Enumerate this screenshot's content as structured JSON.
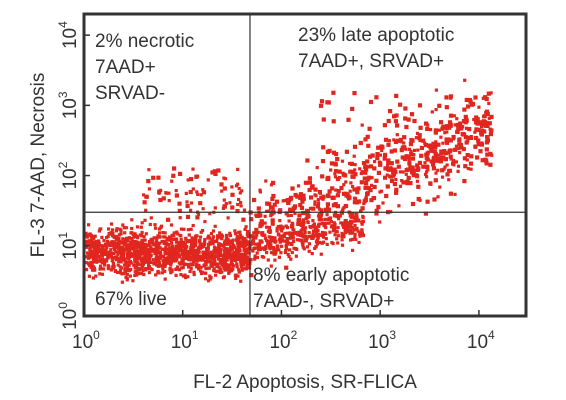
{
  "chart_data": {
    "type": "scatter",
    "xlabel": "FL-2 Apoptosis, SR-FLICA",
    "ylabel": "FL-3 7-AAD, Necrosis",
    "x_scale": "log",
    "y_scale": "log",
    "xlim": [
      1,
      30000
    ],
    "ylim": [
      1,
      20000
    ],
    "x_ticks": [
      {
        "base": "10",
        "exp": "0"
      },
      {
        "base": "10",
        "exp": "1"
      },
      {
        "base": "10",
        "exp": "2"
      },
      {
        "base": "10",
        "exp": "3"
      },
      {
        "base": "10",
        "exp": "4"
      }
    ],
    "y_ticks": [
      {
        "base": "10",
        "exp": "0"
      },
      {
        "base": "10",
        "exp": "1"
      },
      {
        "base": "10",
        "exp": "2"
      },
      {
        "base": "10",
        "exp": "3"
      },
      {
        "base": "10",
        "exp": "4"
      }
    ],
    "gates": {
      "x": 48,
      "y": 30
    },
    "quadrants": {
      "necrotic": [
        "2% necrotic",
        "7AAD+",
        "SRVAD-"
      ],
      "late_apoptotic": [
        "23% late apoptotic",
        "7AAD+, SRVAD+"
      ],
      "early_apoptotic": [
        "8% early apoptotic",
        "7AAD-, SRVAD+"
      ],
      "live": [
        "67% live"
      ]
    },
    "point_color": "#e0261e",
    "populations": [
      {
        "name": "live",
        "x_range": [
          1,
          48
        ],
        "y_center": 8,
        "y_spread": 0.22,
        "percent": 67
      },
      {
        "name": "early apoptotic",
        "x_range": [
          48,
          1000
        ],
        "y_center": 12,
        "y_spread": 0.25,
        "percent": 8
      },
      {
        "name": "late apoptotic",
        "x_range": [
          48,
          15000
        ],
        "y_center": 150,
        "y_spread": 0.45,
        "percent": 23
      },
      {
        "name": "necrotic",
        "x_range": [
          5,
          48
        ],
        "y_center": 80,
        "y_spread": 0.3,
        "percent": 2
      }
    ]
  }
}
